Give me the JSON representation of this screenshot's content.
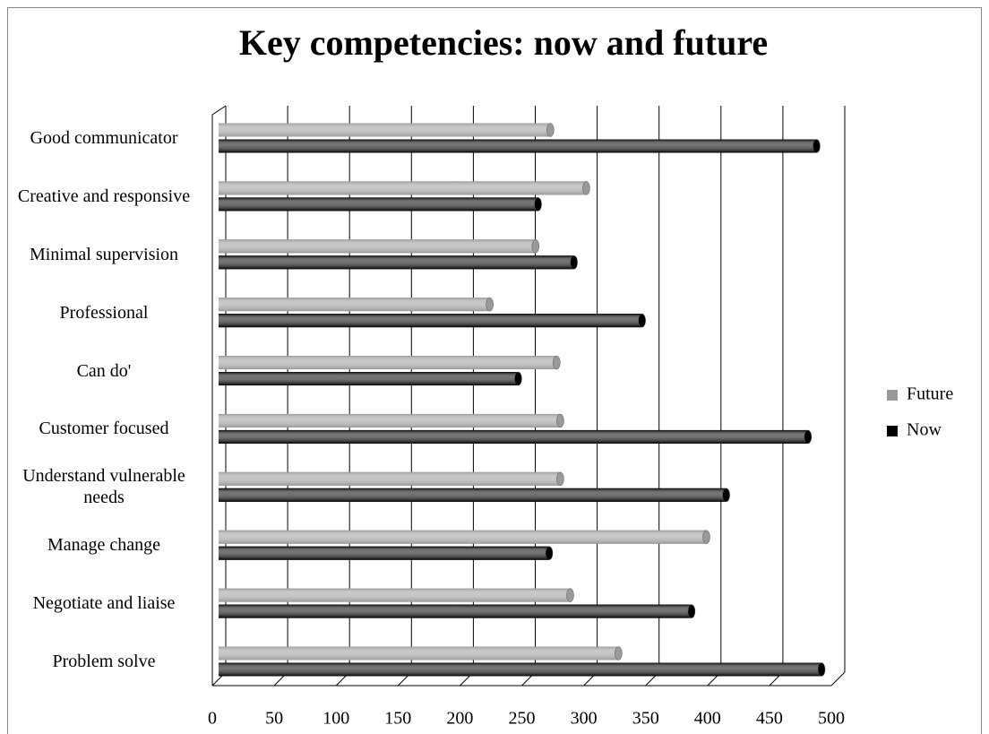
{
  "chart_data": {
    "type": "bar",
    "orientation": "horizontal",
    "title": "Key competencies: now and future",
    "categories": [
      "Good communicator",
      "Creative and responsive",
      "Minimal supervision",
      "Professional",
      "Can do'",
      "Customer focused",
      "Understand vulnerable needs",
      "Manage change",
      "Negotiate and liaise",
      "Problem solve"
    ],
    "series": [
      {
        "name": "Future",
        "color": "#999999",
        "values": [
          268,
          297,
          256,
          219,
          273,
          276,
          276,
          394,
          284,
          323
        ]
      },
      {
        "name": "Now",
        "color": "#000000",
        "values": [
          483,
          258,
          287,
          342,
          242,
          476,
          410,
          267,
          382,
          487
        ]
      }
    ],
    "xlim": [
      0,
      500
    ],
    "xticks": [
      0,
      50,
      100,
      150,
      200,
      250,
      300,
      350,
      400,
      450,
      500
    ],
    "grid": true,
    "legend": "right"
  }
}
